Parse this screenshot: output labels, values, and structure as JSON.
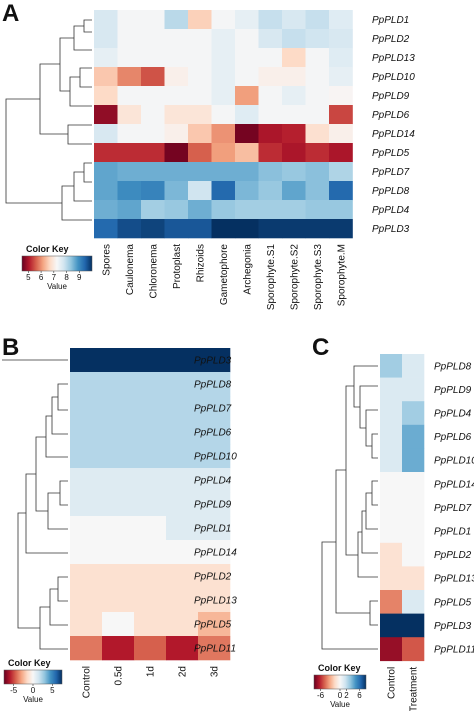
{
  "chart_data": [
    {
      "type": "heatmap",
      "panel": "A",
      "rows": [
        "PpPLD1",
        "PpPLD2",
        "PpPLD13",
        "PpPLD10",
        "PpPLD9",
        "PpPLD6",
        "PpPLD14",
        "PpPLD5",
        "PpPLD7",
        "PpPLD8",
        "PpPLD4",
        "PpPLD3"
      ],
      "columns": [
        "Spores",
        "Caulonema",
        "Chloronema",
        "Protoplast",
        "Rhizoids",
        "Gametophore",
        "Archegonia",
        "Sporophyte.S1",
        "Sporophyte.S2",
        "Sporophyte.S3",
        "Sporophyte.M"
      ],
      "values": [
        [
          7.7,
          7.3,
          7.3,
          8.0,
          6.6,
          7.3,
          7.5,
          7.9,
          7.7,
          7.9,
          7.6
        ],
        [
          7.7,
          7.3,
          7.3,
          7.3,
          7.3,
          7.5,
          7.3,
          7.7,
          7.9,
          7.8,
          7.7
        ],
        [
          7.5,
          7.3,
          7.3,
          7.3,
          7.3,
          7.5,
          7.3,
          7.3,
          6.7,
          7.3,
          7.6
        ],
        [
          6.5,
          5.9,
          5.5,
          7.1,
          7.3,
          7.5,
          7.3,
          7.1,
          7.1,
          7.3,
          7.5
        ],
        [
          6.7,
          7.3,
          7.3,
          7.3,
          7.3,
          7.5,
          6.1,
          7.3,
          7.5,
          7.3,
          7.2
        ],
        [
          4.8,
          6.9,
          7.3,
          6.9,
          6.9,
          7.3,
          7.6,
          7.3,
          7.3,
          7.3,
          5.4
        ],
        [
          7.7,
          7.3,
          7.3,
          7.1,
          6.5,
          6.0,
          4.6,
          5.0,
          5.1,
          6.8,
          7.1
        ],
        [
          5.2,
          5.2,
          5.2,
          4.6,
          5.6,
          6.1,
          6.4,
          5.2,
          5.0,
          5.2,
          5.0
        ],
        [
          8.7,
          8.6,
          8.6,
          8.6,
          8.6,
          8.6,
          8.6,
          8.4,
          8.3,
          8.4,
          8.1
        ],
        [
          8.7,
          9.0,
          9.1,
          8.5,
          7.8,
          9.4,
          8.5,
          8.3,
          8.7,
          8.4,
          9.4
        ],
        [
          8.6,
          8.7,
          8.2,
          8.3,
          8.6,
          8.3,
          8.2,
          8.2,
          8.2,
          8.3,
          8.3
        ],
        [
          9.4,
          9.7,
          9.8,
          9.6,
          9.6,
          10.0,
          10.0,
          9.9,
          9.9,
          9.9,
          9.9
        ]
      ],
      "color_key": {
        "title": "Color Key",
        "label": "Value",
        "ticks": [
          5,
          6,
          7,
          8,
          9
        ],
        "range": [
          4.5,
          10
        ],
        "colors": [
          "#67001f",
          "#f7f7f7",
          "#053061"
        ]
      }
    },
    {
      "type": "heatmap",
      "panel": "B",
      "rows": [
        "PpPLD3",
        "PpPLD8",
        "PpPLD7",
        "PpPLD6",
        "PpPLD10",
        "PpPLD4",
        "PpPLD9",
        "PpPLD1",
        "PpPLD14",
        "PpPLD2",
        "PpPLD13",
        "PpPLD5",
        "PpPLD11"
      ],
      "columns": [
        "Control",
        "0.5d",
        "1d",
        "2d",
        "3d"
      ],
      "values": [
        [
          7.5,
          7.5,
          7.5,
          7.5,
          7.5
        ],
        [
          2.2,
          2.2,
          2.2,
          2.2,
          2.2
        ],
        [
          2.2,
          2.2,
          2.2,
          2.2,
          2.2
        ],
        [
          2.2,
          2.2,
          2.2,
          2.2,
          2.2
        ],
        [
          2.2,
          2.2,
          2.2,
          2.2,
          2.2
        ],
        [
          1.0,
          1.0,
          1.0,
          1.0,
          1.0
        ],
        [
          1.0,
          1.0,
          1.0,
          1.0,
          1.0
        ],
        [
          0.0,
          0.0,
          0.0,
          1.0,
          1.0
        ],
        [
          0.0,
          0.0,
          0.0,
          0.0,
          0.0
        ],
        [
          -1.2,
          -1.2,
          -1.2,
          -1.2,
          -1.2
        ],
        [
          -1.2,
          -1.2,
          -1.2,
          -1.2,
          -1.2
        ],
        [
          -1.2,
          0.0,
          -1.2,
          -1.2,
          -2.5
        ],
        [
          -4.0,
          -6.0,
          -4.5,
          -6.0,
          -4.0
        ]
      ],
      "color_key": {
        "title": "Color Key",
        "label": "Value",
        "ticks": [
          -5,
          0,
          5
        ],
        "range": [
          -7.5,
          7.5
        ],
        "colors": [
          "#67001f",
          "#f7f7f7",
          "#053061"
        ]
      }
    },
    {
      "type": "heatmap",
      "panel": "C",
      "rows": [
        "PpPLD8",
        "PpPLD9",
        "PpPLD4",
        "PpPLD6",
        "PpPLD10",
        "PpPLD14",
        "PpPLD7",
        "PpPLD1",
        "PpPLD2",
        "PpPLD13",
        "PpPLD5",
        "PpPLD3",
        "PpPLD11"
      ],
      "columns": [
        "Control",
        "Treatment"
      ],
      "values": [
        [
          2.8,
          1.2
        ],
        [
          1.2,
          1.2
        ],
        [
          1.2,
          2.8
        ],
        [
          1.2,
          4.0
        ],
        [
          1.2,
          4.0
        ],
        [
          0.0,
          0.0
        ],
        [
          0.0,
          0.0
        ],
        [
          0.0,
          0.0
        ],
        [
          -1.2,
          0.0
        ],
        [
          -1.2,
          -1.2
        ],
        [
          -4.0,
          1.2
        ],
        [
          8.0,
          8.0
        ],
        [
          -7.0,
          -5.0
        ]
      ],
      "color_key": {
        "title": "Color Key",
        "label": "Value",
        "ticks": [
          -6,
          0,
          2,
          6
        ],
        "range": [
          -8,
          8
        ],
        "colors": [
          "#67001f",
          "#f7f7f7",
          "#053061"
        ]
      }
    }
  ]
}
